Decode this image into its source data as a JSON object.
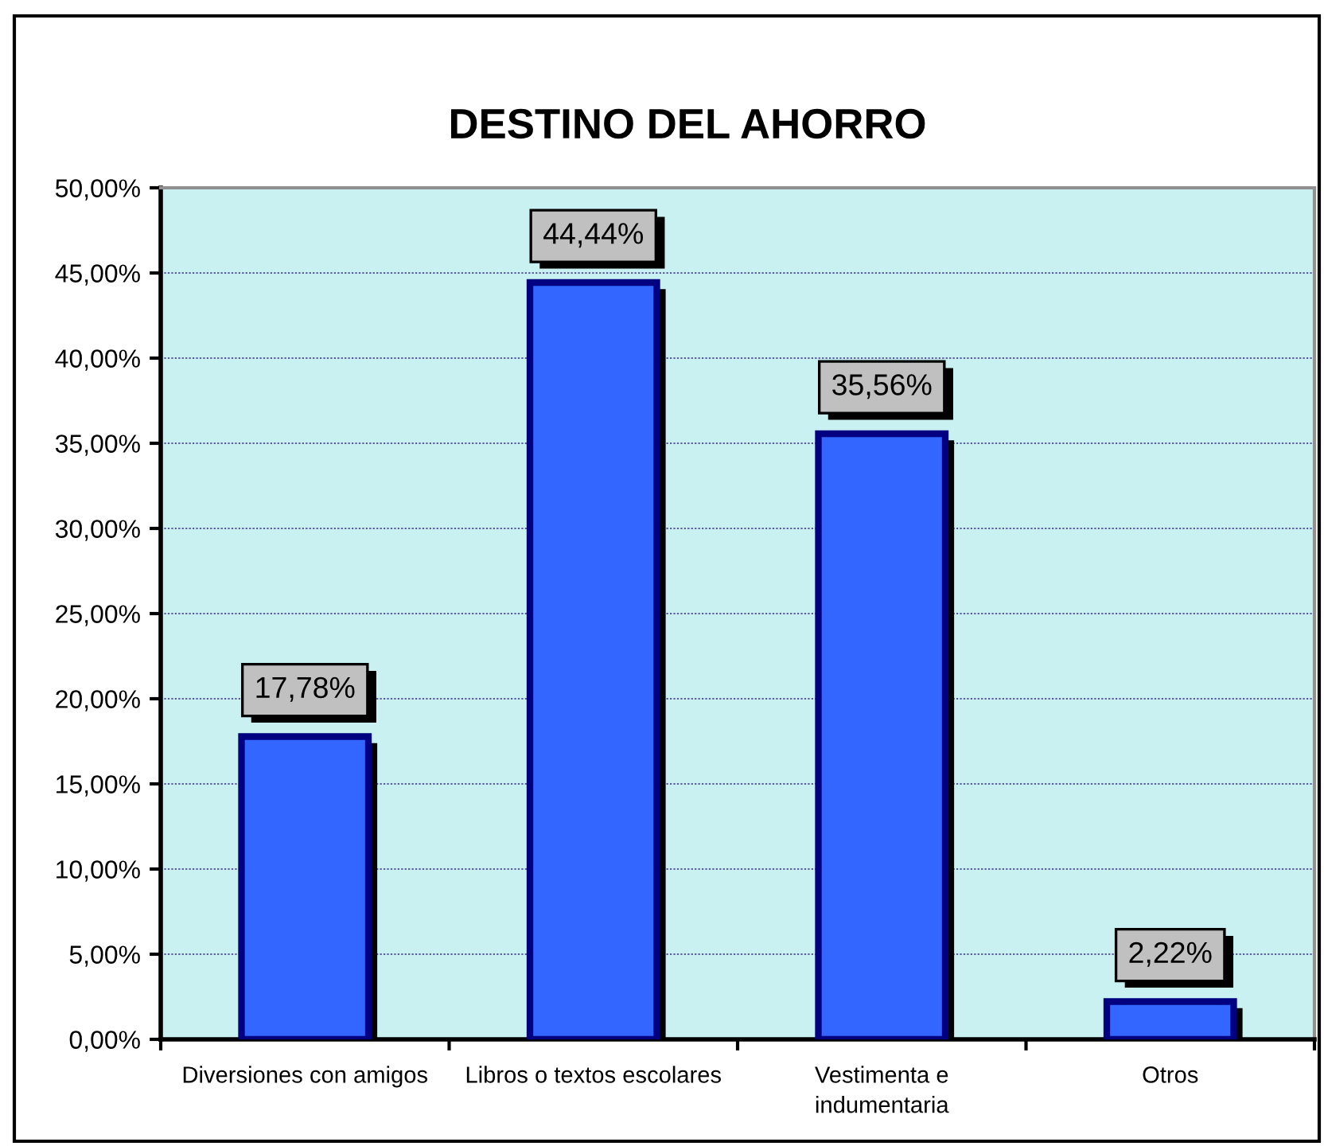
{
  "chart_data": {
    "type": "bar",
    "title": "DESTINO DEL AHORRO",
    "categories": [
      "Diversiones con amigos",
      "Libros o textos escolares",
      "Vestimenta e indumentaria",
      "Otros"
    ],
    "values": [
      17.78,
      44.44,
      35.56,
      2.22
    ],
    "color": "#3366ff",
    "value_labels": [
      "17,78%",
      "44,44%",
      "35,56%",
      "2,22%"
    ],
    "ylim": [
      0,
      50
    ],
    "yticks": [
      {
        "value": 0,
        "label": "0,00%"
      },
      {
        "value": 5,
        "label": "5,00%"
      },
      {
        "value": 10,
        "label": "10,00%"
      },
      {
        "value": 15,
        "label": "15,00%"
      },
      {
        "value": 20,
        "label": "20,00%"
      },
      {
        "value": 25,
        "label": "25,00%"
      },
      {
        "value": 30,
        "label": "30,00%"
      },
      {
        "value": 35,
        "label": "35,00%"
      },
      {
        "value": 40,
        "label": "40,00%"
      },
      {
        "value": 45,
        "label": "45,00%"
      },
      {
        "value": 50,
        "label": "50,00%"
      }
    ],
    "grid": "y"
  }
}
